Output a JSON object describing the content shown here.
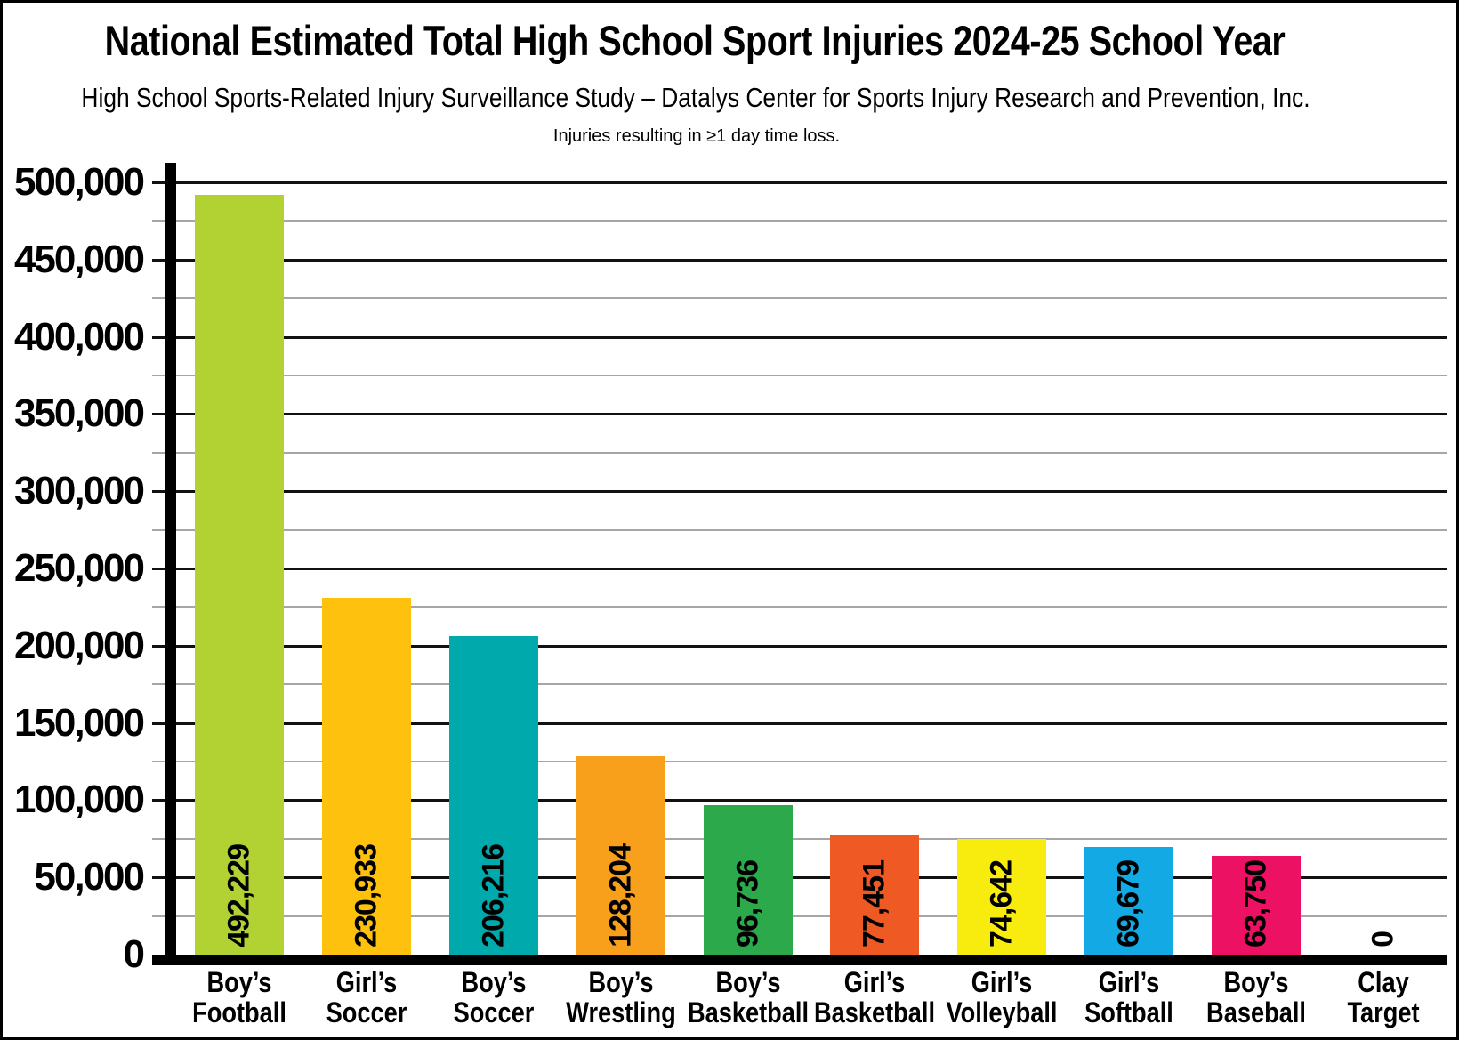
{
  "header": {
    "title": "National Estimated Total High School Sport Injuries 2024-25 School Year",
    "subtitle": "High School Sports-Related Injury Surveillance Study – Datalys Center for Sports Injury Research and Prevention, Inc.",
    "note": "Injuries resulting in ≥1 day time loss."
  },
  "chart_data": {
    "type": "bar",
    "title": "National Estimated Total High School Sport Injuries 2024-25 School Year",
    "subtitle": "High School Sports-Related Injury Surveillance Study – Datalys Center for Sports Injury Research and Prevention, Inc.",
    "note": "Injuries resulting in ≥1 day time loss.",
    "xlabel": "",
    "ylabel": "",
    "ylim": [
      0,
      500000
    ],
    "y_major_step": 50000,
    "y_minor_step": 25000,
    "grid": "horizontal: major black lines every 50,000, minor gray lines every 25,000",
    "legend_position": "none",
    "y_tick_labels": [
      "0",
      "50,000",
      "100,000",
      "150,000",
      "200,000",
      "250,000",
      "300,000",
      "350,000",
      "400,000",
      "450,000",
      "500,000"
    ],
    "categories": [
      "Boy’s Football",
      "Girl’s Soccer",
      "Boy’s Soccer",
      "Boy’s Wrestling",
      "Boy’s Basketball",
      "Girl’s Basketball",
      "Girl’s Volleyball",
      "Girl’s Softball",
      "Boy’s Baseball",
      "Clay Target"
    ],
    "values": [
      492229,
      230933,
      206216,
      128204,
      96736,
      77451,
      74642,
      69679,
      63750,
      0
    ],
    "bars": [
      {
        "category_lines": [
          "Boy’s",
          "Football"
        ],
        "value": 492229,
        "value_label": "492,229",
        "color": "#b2d234"
      },
      {
        "category_lines": [
          "Girl’s",
          "Soccer"
        ],
        "value": 230933,
        "value_label": "230,933",
        "color": "#fec10d"
      },
      {
        "category_lines": [
          "Boy’s",
          "Soccer"
        ],
        "value": 206216,
        "value_label": "206,216",
        "color": "#00a9ac"
      },
      {
        "category_lines": [
          "Boy’s",
          "Wrestling"
        ],
        "value": 128204,
        "value_label": "128,204",
        "color": "#f8a01c"
      },
      {
        "category_lines": [
          "Boy’s",
          "Basketball"
        ],
        "value": 96736,
        "value_label": "96,736",
        "color": "#2ba94b"
      },
      {
        "category_lines": [
          "Girl’s",
          "Basketball"
        ],
        "value": 77451,
        "value_label": "77,451",
        "color": "#ef5a24"
      },
      {
        "category_lines": [
          "Girl’s",
          "Volleyball"
        ],
        "value": 74642,
        "value_label": "74,642",
        "color": "#f8ec0e"
      },
      {
        "category_lines": [
          "Girl’s",
          "Softball"
        ],
        "value": 69679,
        "value_label": "69,679",
        "color": "#12a9e4"
      },
      {
        "category_lines": [
          "Boy’s",
          "Baseball"
        ],
        "value": 63750,
        "value_label": "63,750",
        "color": "#ed1164"
      },
      {
        "category_lines": [
          "Clay",
          "Target"
        ],
        "value": 0,
        "value_label": "0",
        "color": null
      }
    ]
  },
  "colors": {
    "background": "#ffffff",
    "border": "#000000",
    "axis": "#000000",
    "grid_major": "#111111",
    "grid_minor": "#a6a6a6",
    "text": "#000000"
  }
}
